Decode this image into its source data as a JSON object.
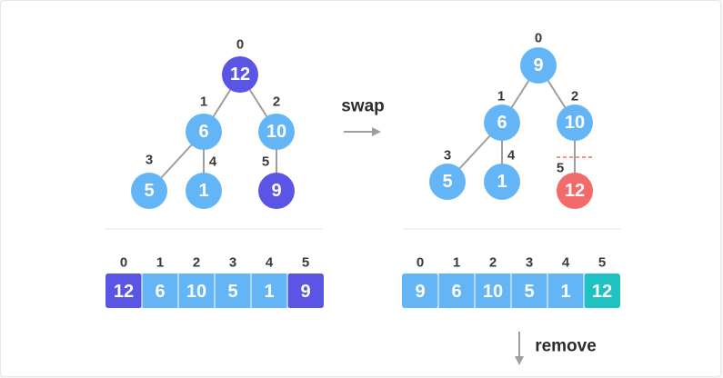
{
  "colors": {
    "node_blue": "#64b5f6",
    "node_purple": "#5b55e6",
    "node_red": "#f36a6a",
    "cell_teal": "#1fc2c2",
    "edge": "#9e9e9e",
    "divider": "#e3e3e3",
    "dashed": "#f36a6a"
  },
  "left_tree": {
    "nodes": [
      {
        "index": "0",
        "value": "12",
        "color": "#5b55e6"
      },
      {
        "index": "1",
        "value": "6",
        "color": "#64b5f6"
      },
      {
        "index": "2",
        "value": "10",
        "color": "#64b5f6"
      },
      {
        "index": "3",
        "value": "5",
        "color": "#64b5f6"
      },
      {
        "index": "4",
        "value": "1",
        "color": "#64b5f6"
      },
      {
        "index": "5",
        "value": "9",
        "color": "#5b55e6"
      }
    ]
  },
  "right_tree": {
    "nodes": [
      {
        "index": "0",
        "value": "9",
        "color": "#64b5f6"
      },
      {
        "index": "1",
        "value": "6",
        "color": "#64b5f6"
      },
      {
        "index": "2",
        "value": "10",
        "color": "#64b5f6"
      },
      {
        "index": "3",
        "value": "5",
        "color": "#64b5f6"
      },
      {
        "index": "4",
        "value": "1",
        "color": "#64b5f6"
      },
      {
        "index": "5",
        "value": "12",
        "color": "#f36a6a"
      }
    ]
  },
  "swap_label": "swap",
  "remove_label": "remove",
  "left_array": {
    "indices": [
      "0",
      "1",
      "2",
      "3",
      "4",
      "5"
    ],
    "values": [
      "12",
      "6",
      "10",
      "5",
      "1",
      "9"
    ],
    "colors": [
      "#5b55e6",
      "#64b5f6",
      "#64b5f6",
      "#64b5f6",
      "#64b5f6",
      "#5b55e6"
    ]
  },
  "right_array": {
    "indices": [
      "0",
      "1",
      "2",
      "3",
      "4",
      "5"
    ],
    "values": [
      "9",
      "6",
      "10",
      "5",
      "1",
      "12"
    ],
    "colors": [
      "#64b5f6",
      "#64b5f6",
      "#64b5f6",
      "#64b5f6",
      "#64b5f6",
      "#1fc2c2"
    ]
  }
}
